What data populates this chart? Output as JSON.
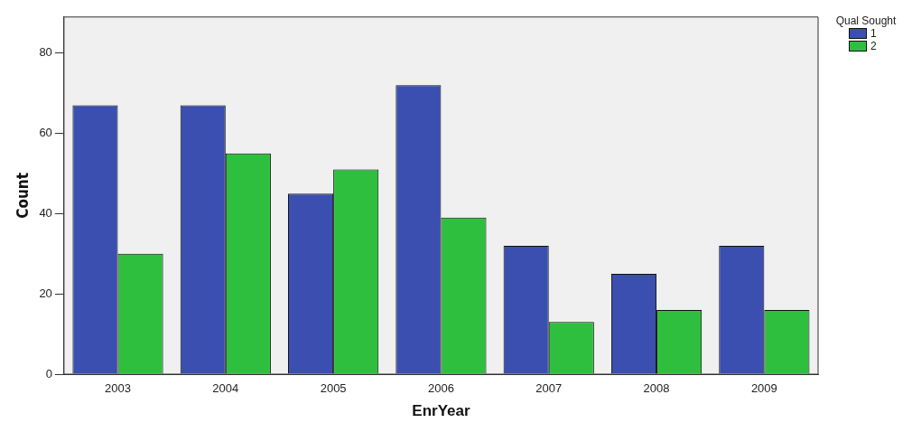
{
  "chart_data": {
    "type": "bar",
    "xlabel": "EnrYear",
    "ylabel": "Count",
    "legend_title": "Qual Sought",
    "legend": "top right",
    "grid": false,
    "categories": [
      "2003",
      "2004",
      "2005",
      "2006",
      "2007",
      "2008",
      "2009"
    ],
    "series": [
      {
        "name": "1",
        "color": "#3a4fb0",
        "values": [
          67,
          67,
          45,
          72,
          32,
          25,
          32
        ]
      },
      {
        "name": "2",
        "color": "#2fbf3f",
        "values": [
          30,
          55,
          51,
          39,
          13,
          16,
          16
        ]
      }
    ],
    "ylim": [
      0,
      89
    ],
    "yticks": [
      0,
      20,
      40,
      60,
      80
    ]
  }
}
